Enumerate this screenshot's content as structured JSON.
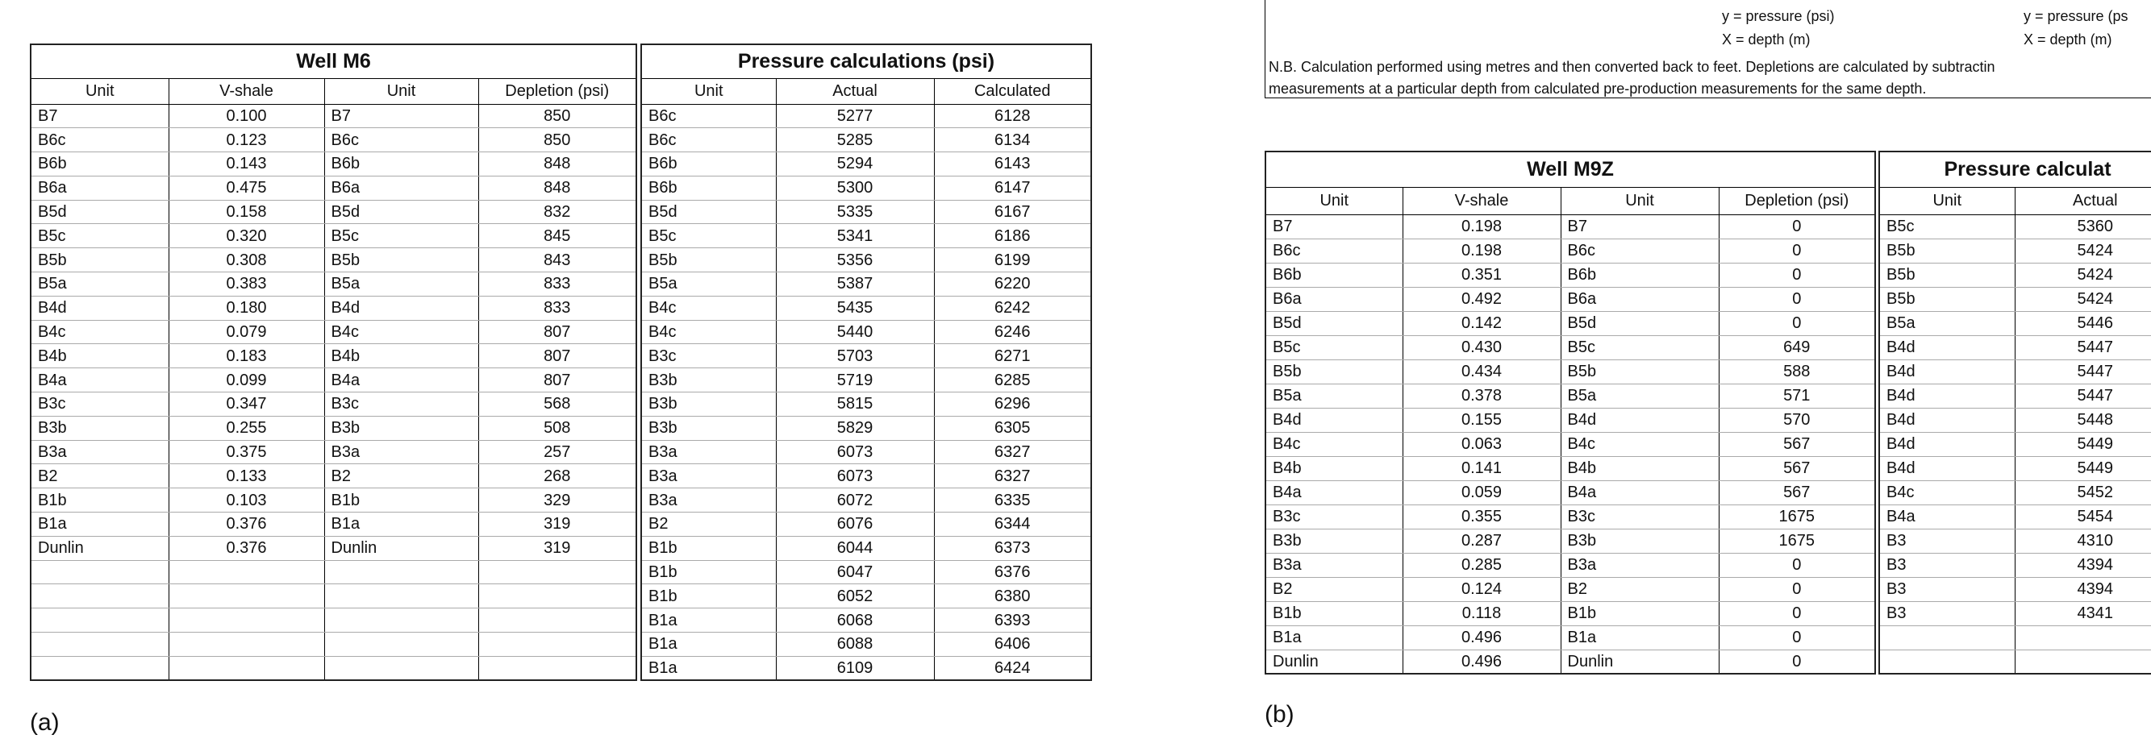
{
  "top_note": {
    "formula_1": {
      "y": "y = pressure (psi)",
      "x": "X = depth (m)"
    },
    "formula_2": {
      "y": "y = pressure (ps",
      "x": "X = depth (m)"
    },
    "note_lines": [
      "N.B. Calculation performed using metres and then converted back to feet.  Depletions are calculated by subtractin",
      "measurements at a particular depth from calculated pre-production measurements for the same depth."
    ]
  },
  "table_a": {
    "label": "(a)",
    "well": {
      "title": "Well M6",
      "columns": [
        "Unit",
        "V-shale",
        "Unit",
        "Depletion (psi)"
      ],
      "rows": [
        [
          "B7",
          "0.100",
          "B7",
          "850"
        ],
        [
          "B6c",
          "0.123",
          "B6c",
          "850"
        ],
        [
          "B6b",
          "0.143",
          "B6b",
          "848"
        ],
        [
          "B6a",
          "0.475",
          "B6a",
          "848"
        ],
        [
          "B5d",
          "0.158",
          "B5d",
          "832"
        ],
        [
          "B5c",
          "0.320",
          "B5c",
          "845"
        ],
        [
          "B5b",
          "0.308",
          "B5b",
          "843"
        ],
        [
          "B5a",
          "0.383",
          "B5a",
          "833"
        ],
        [
          "B4d",
          "0.180",
          "B4d",
          "833"
        ],
        [
          "B4c",
          "0.079",
          "B4c",
          "807"
        ],
        [
          "B4b",
          "0.183",
          "B4b",
          "807"
        ],
        [
          "B4a",
          "0.099",
          "B4a",
          "807"
        ],
        [
          "B3c",
          "0.347",
          "B3c",
          "568"
        ],
        [
          "B3b",
          "0.255",
          "B3b",
          "508"
        ],
        [
          "B3a",
          "0.375",
          "B3a",
          "257"
        ],
        [
          "B2",
          "0.133",
          "B2",
          "268"
        ],
        [
          "B1b",
          "0.103",
          "B1b",
          "329"
        ],
        [
          "B1a",
          "0.376",
          "B1a",
          "319"
        ],
        [
          "Dunlin",
          "0.376",
          "Dunlin",
          "319"
        ]
      ]
    },
    "pressure": {
      "title": "Pressure calculations (psi)",
      "columns": [
        "Unit",
        "Actual",
        "Calculated"
      ],
      "rows": [
        [
          "B6c",
          "5277",
          "6128"
        ],
        [
          "B6c",
          "5285",
          "6134"
        ],
        [
          "B6b",
          "5294",
          "6143"
        ],
        [
          "B6b",
          "5300",
          "6147"
        ],
        [
          "B5d",
          "5335",
          "6167"
        ],
        [
          "B5c",
          "5341",
          "6186"
        ],
        [
          "B5b",
          "5356",
          "6199"
        ],
        [
          "B5a",
          "5387",
          "6220"
        ],
        [
          "B4c",
          "5435",
          "6242"
        ],
        [
          "B4c",
          "5440",
          "6246"
        ],
        [
          "B3c",
          "5703",
          "6271"
        ],
        [
          "B3b",
          "5719",
          "6285"
        ],
        [
          "B3b",
          "5815",
          "6296"
        ],
        [
          "B3b",
          "5829",
          "6305"
        ],
        [
          "B3a",
          "6073",
          "6327"
        ],
        [
          "B3a",
          "6073",
          "6327"
        ],
        [
          "B3a",
          "6072",
          "6335"
        ],
        [
          "B2",
          "6076",
          "6344"
        ],
        [
          "B1b",
          "6044",
          "6373"
        ],
        [
          "B1b",
          "6047",
          "6376"
        ],
        [
          "B1b",
          "6052",
          "6380"
        ],
        [
          "B1a",
          "6068",
          "6393"
        ],
        [
          "B1a",
          "6088",
          "6406"
        ],
        [
          "B1a",
          "6109",
          "6424"
        ]
      ]
    }
  },
  "table_b": {
    "label": "(b)",
    "well": {
      "title": "Well M9Z",
      "columns": [
        "Unit",
        "V-shale",
        "Unit",
        "Depletion (psi)"
      ],
      "rows": [
        [
          "B7",
          "0.198",
          "B7",
          "0"
        ],
        [
          "B6c",
          "0.198",
          "B6c",
          "0"
        ],
        [
          "B6b",
          "0.351",
          "B6b",
          "0"
        ],
        [
          "B6a",
          "0.492",
          "B6a",
          "0"
        ],
        [
          "B5d",
          "0.142",
          "B5d",
          "0"
        ],
        [
          "B5c",
          "0.430",
          "B5c",
          "649"
        ],
        [
          "B5b",
          "0.434",
          "B5b",
          "588"
        ],
        [
          "B5a",
          "0.378",
          "B5a",
          "571"
        ],
        [
          "B4d",
          "0.155",
          "B4d",
          "570"
        ],
        [
          "B4c",
          "0.063",
          "B4c",
          "567"
        ],
        [
          "B4b",
          "0.141",
          "B4b",
          "567"
        ],
        [
          "B4a",
          "0.059",
          "B4a",
          "567"
        ],
        [
          "B3c",
          "0.355",
          "B3c",
          "1675"
        ],
        [
          "B3b",
          "0.287",
          "B3b",
          "1675"
        ],
        [
          "B3a",
          "0.285",
          "B3a",
          "0"
        ],
        [
          "B2",
          "0.124",
          "B2",
          "0"
        ],
        [
          "B1b",
          "0.118",
          "B1b",
          "0"
        ],
        [
          "B1a",
          "0.496",
          "B1a",
          "0"
        ],
        [
          "Dunlin",
          "0.496",
          "Dunlin",
          "0"
        ]
      ]
    },
    "pressure": {
      "title": "Pressure calculat",
      "columns": [
        "Unit",
        "Actual"
      ],
      "rows": [
        [
          "B5c",
          "5360"
        ],
        [
          "B5b",
          "5424"
        ],
        [
          "B5b",
          "5424"
        ],
        [
          "B5b",
          "5424"
        ],
        [
          "B5a",
          "5446"
        ],
        [
          "B4d",
          "5447"
        ],
        [
          "B4d",
          "5447"
        ],
        [
          "B4d",
          "5447"
        ],
        [
          "B4d",
          "5448"
        ],
        [
          "B4d",
          "5449"
        ],
        [
          "B4d",
          "5449"
        ],
        [
          "B4c",
          "5452"
        ],
        [
          "B4a",
          "5454"
        ],
        [
          "B3",
          "4310"
        ],
        [
          "B3",
          "4394"
        ],
        [
          "B3",
          "4394"
        ],
        [
          "B3",
          "4341"
        ]
      ]
    }
  }
}
